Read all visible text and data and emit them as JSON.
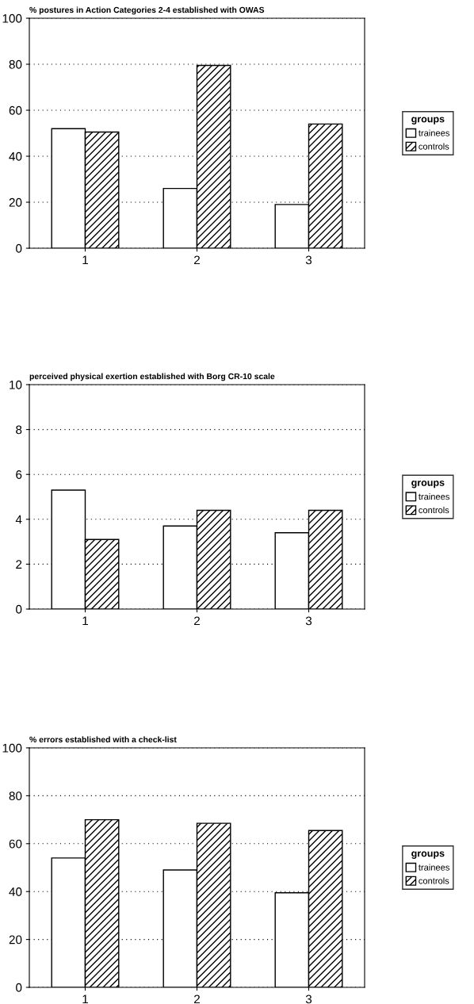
{
  "chart_data": [
    {
      "type": "bar",
      "title": "% postures in Action Categories 2-4 established with OWAS",
      "categories": [
        "1",
        "2",
        "3"
      ],
      "legend_title": "groups",
      "legend": "right",
      "grid": "y",
      "ylim": [
        0,
        100
      ],
      "yticks": [
        0,
        20,
        40,
        60,
        80,
        100
      ],
      "series": [
        {
          "name": "trainees",
          "color": "#ffffff",
          "values": [
            52,
            26,
            19
          ]
        },
        {
          "name": "controls",
          "color": "#000000",
          "values": [
            50.5,
            79.5,
            54
          ]
        }
      ]
    },
    {
      "type": "bar",
      "title": "perceived physical exertion established with Borg CR-10 scale",
      "categories": [
        "1",
        "2",
        "3"
      ],
      "legend_title": "groups",
      "legend": "right",
      "grid": "y",
      "ylim": [
        0,
        10
      ],
      "yticks": [
        0,
        2,
        4,
        6,
        8,
        10
      ],
      "series": [
        {
          "name": "trainees",
          "color": "#ffffff",
          "values": [
            5.3,
            3.7,
            3.4
          ]
        },
        {
          "name": "controls",
          "color": "#000000",
          "values": [
            3.1,
            4.4,
            4.4
          ]
        }
      ]
    },
    {
      "type": "bar",
      "title": "% errors established with a check-list",
      "categories": [
        "1",
        "2",
        "3"
      ],
      "legend_title": "groups",
      "legend": "right",
      "grid": "y",
      "ylim": [
        0,
        100
      ],
      "yticks": [
        0,
        20,
        40,
        60,
        80,
        100
      ],
      "series": [
        {
          "name": "trainees",
          "color": "#ffffff",
          "values": [
            54,
            49,
            39.5
          ]
        },
        {
          "name": "controls",
          "color": "#000000",
          "values": [
            70,
            68.5,
            65.5
          ]
        }
      ]
    }
  ]
}
